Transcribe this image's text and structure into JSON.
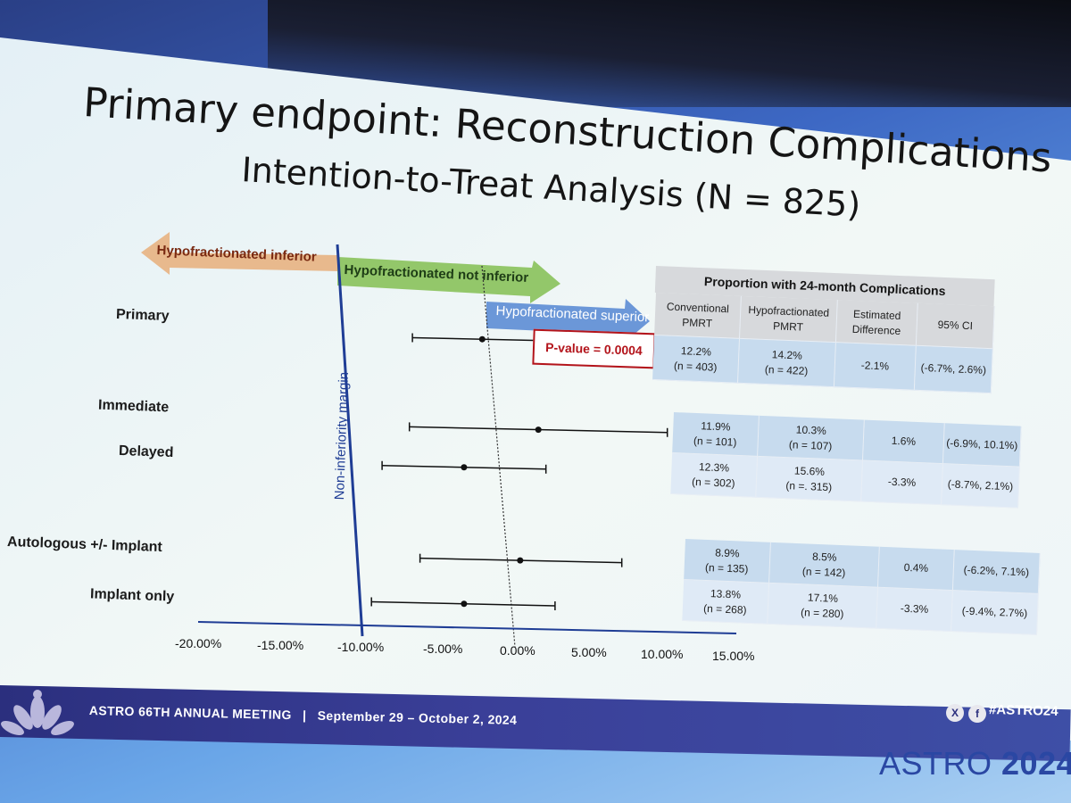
{
  "title_lines": [
    "Primary endpoint: Reconstruction Complications",
    "Intention-to-Treat Analysis (N = 825)"
  ],
  "arrows": {
    "inferior": "Hypofractionated inferior",
    "not_inferior": "Hypofractionated not inferior",
    "superior": "Hypofractionated superior"
  },
  "margin_label": "Non-inferiority margin",
  "p_value": "P-value = 0.0004",
  "colors": {
    "arrow_inferior": "#e8b98d",
    "arrow_not_inferior": "#93c76a",
    "arrow_superior": "#6b97d8",
    "margin_line": "#1f3d95",
    "pvalue": "#b3141b",
    "table_header": "#d7d9dc",
    "table_band_1": "#c7dbee",
    "table_band_2": "#dfeaf6",
    "footer": "#2b2f7e"
  },
  "chart_data": {
    "type": "forest",
    "x_tick_labels": [
      "-20.00%",
      "-15.00%",
      "-10.00%",
      "-5.00%",
      "0.00%",
      "5.00%",
      "10.00%",
      "15.00%"
    ],
    "xlim": [
      -20,
      15
    ],
    "non_inferiority_margin": -10,
    "reference_line": -2,
    "rows": [
      {
        "label": "Primary",
        "estimate": -2.1,
        "ci": [
          -6.7,
          2.6
        ]
      },
      {
        "label": "Immediate",
        "estimate": 1.6,
        "ci": [
          -6.9,
          10.1
        ]
      },
      {
        "label": "Delayed",
        "estimate": -3.3,
        "ci": [
          -8.7,
          2.1
        ]
      },
      {
        "label": "Autologous +/- Implant",
        "estimate": 0.4,
        "ci": [
          -6.2,
          7.1
        ]
      },
      {
        "label": "Implant only",
        "estimate": -3.3,
        "ci": [
          -9.4,
          2.7
        ]
      }
    ]
  },
  "table": {
    "title": "Proportion with 24-month Complications",
    "columns": [
      "Conventional PMRT",
      "Hypofractionated PMRT",
      "Estimated Difference",
      "95% CI"
    ],
    "primary": [
      [
        "12.2%",
        "(n = 403)",
        "14.2%",
        "(n = 422)",
        "-2.1%",
        "(-6.7%, 2.6%)"
      ]
    ],
    "timing": [
      [
        "11.9%",
        "(n = 101)",
        "10.3%",
        "(n = 107)",
        "1.6%",
        "(-6.9%, 10.1%)"
      ],
      [
        "12.3%",
        "(n = 302)",
        "15.6%",
        "(n =. 315)",
        "-3.3%",
        "(-8.7%, 2.1%)"
      ]
    ],
    "type": [
      [
        "8.9%",
        "(n = 135)",
        "8.5%",
        "(n = 142)",
        "0.4%",
        "(-6.2%, 7.1%)"
      ],
      [
        "13.8%",
        "(n = 268)",
        "17.1%",
        "(n = 280)",
        "-3.3%",
        "(-9.4%, 2.7%)"
      ]
    ]
  },
  "footer": {
    "meeting": "ASTRO 66TH ANNUAL MEETING",
    "separator": "|",
    "dates": "September 29 – October 2, 2024",
    "hashtag": "#ASTRO24",
    "x_glyph": "X",
    "f_glyph": "f"
  },
  "brand": {
    "name": "ASTRO",
    "year": "2024"
  },
  "icons": {
    "logo": "lotus-logo-icon",
    "x": "x-social-icon",
    "facebook": "facebook-icon"
  }
}
